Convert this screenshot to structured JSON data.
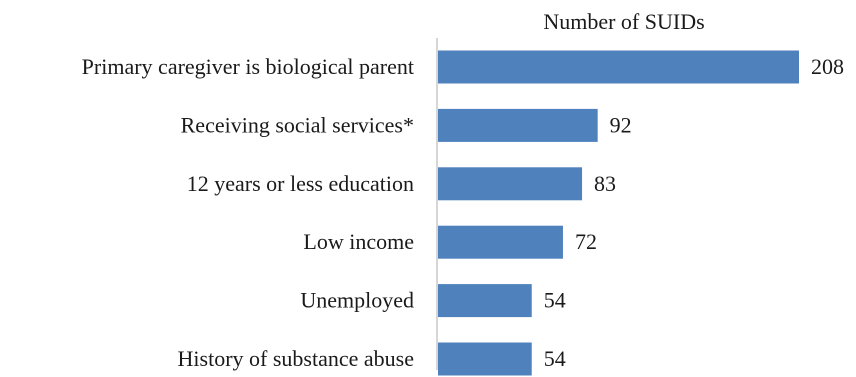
{
  "chart_data": {
    "type": "bar",
    "orientation": "horizontal",
    "title": "Number of SUIDs",
    "categories": [
      "Primary caregiver is biological parent",
      "Receiving social services*",
      "12 years or less education",
      "Low income",
      "Unemployed",
      "History of substance abuse"
    ],
    "values": [
      208,
      92,
      83,
      72,
      54,
      54
    ],
    "xlabel": "",
    "ylabel": "",
    "xlim": [
      0,
      230
    ],
    "grid": false,
    "legend": "none",
    "bar_color": "#4f81bd",
    "axis_color": "#c8c8c8"
  }
}
